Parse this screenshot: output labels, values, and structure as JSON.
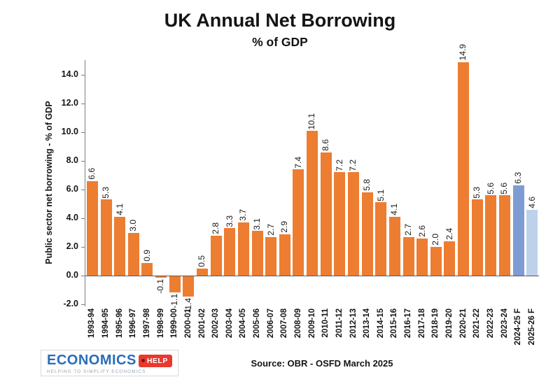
{
  "title": "UK Annual Net Borrowing",
  "subtitle": "% of GDP",
  "source": "Source: OBR - OSFD   March 2025",
  "logo": {
    "name": "ECONOMICS",
    "tag": "HELP",
    "tagline": "HELPING TO SIMPLIFY ECONOMICS"
  },
  "chart_data": {
    "type": "bar",
    "title": "UK Annual Net Borrowing",
    "subtitle": "% of GDP",
    "xlabel": "",
    "ylabel": "Public sector net borrowing - % of GDP",
    "categories": [
      "1993-94",
      "1994-95",
      "1995-96",
      "1996-97",
      "1997-98",
      "1998-99",
      "1999-00",
      "2000-01",
      "2001-02",
      "2002-03",
      "2003-04",
      "2004-05",
      "2005-06",
      "2006-07",
      "2007-08",
      "2008-09",
      "2009-10",
      "2010-11",
      "2011-12",
      "2012-13",
      "2013-14",
      "2014-15",
      "2015-16",
      "2016-17",
      "2017-18",
      "2018-19",
      "2019-20",
      "2020-21",
      "2021-22",
      "2022-23",
      "2023-24",
      "2024-25 F",
      "2025-26 F"
    ],
    "values": [
      6.6,
      5.3,
      4.1,
      3.0,
      0.9,
      -0.1,
      -1.1,
      -1.4,
      0.5,
      2.8,
      3.3,
      3.7,
      3.1,
      2.7,
      2.9,
      7.4,
      10.1,
      8.6,
      7.2,
      7.2,
      5.8,
      5.1,
      4.1,
      2.7,
      2.6,
      2.0,
      2.4,
      14.9,
      5.3,
      5.6,
      5.6,
      6.3,
      4.6
    ],
    "bar_colors": [
      "#ED7D31",
      "#ED7D31",
      "#ED7D31",
      "#ED7D31",
      "#ED7D31",
      "#ED7D31",
      "#ED7D31",
      "#ED7D31",
      "#ED7D31",
      "#ED7D31",
      "#ED7D31",
      "#ED7D31",
      "#ED7D31",
      "#ED7D31",
      "#ED7D31",
      "#ED7D31",
      "#ED7D31",
      "#ED7D31",
      "#ED7D31",
      "#ED7D31",
      "#ED7D31",
      "#ED7D31",
      "#ED7D31",
      "#ED7D31",
      "#ED7D31",
      "#ED7D31",
      "#ED7D31",
      "#ED7D31",
      "#ED7D31",
      "#ED7D31",
      "#ED7D31",
      "#7E9CD4",
      "#BDD1EA"
    ],
    "yticks": [
      -2,
      0,
      2,
      4,
      6,
      8,
      10,
      12,
      14
    ],
    "ylim": [
      -2.2,
      15.1
    ],
    "grid": false,
    "legend": false,
    "value_labels": true,
    "colors": {
      "actual": "#ED7D31",
      "forecast": "#7E9CD4",
      "forecast_light": "#BDD1EA",
      "axis": "#7f7f7f"
    }
  }
}
